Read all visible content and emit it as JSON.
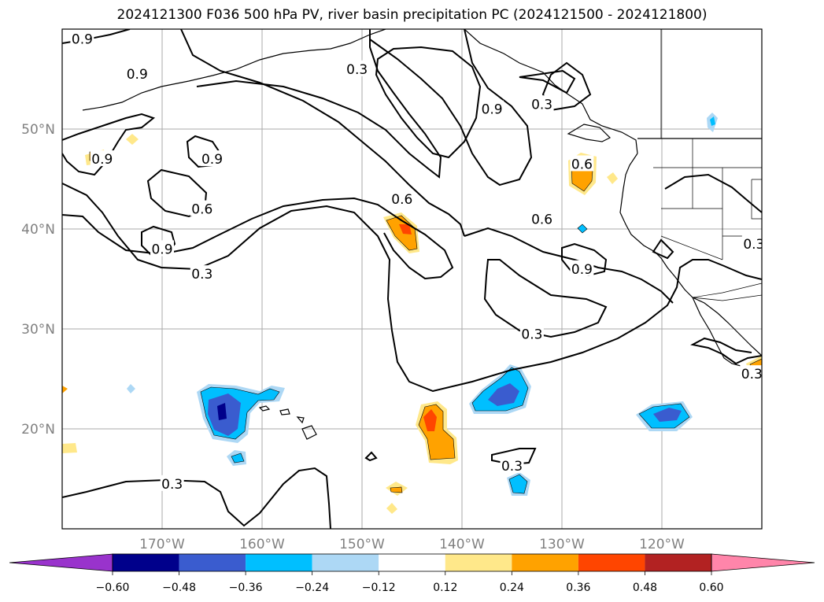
{
  "title": "2024121300 F036 500 hPa PV, river basin precipitation PC (2024121500 - 2024121800)",
  "map": {
    "projection": "PlateCarree",
    "lon_range": [
      -180,
      -110
    ],
    "lat_range": [
      10,
      60
    ],
    "grid": true,
    "lon_ticks": [
      {
        "value": -170,
        "label": "170°W"
      },
      {
        "value": -160,
        "label": "160°W"
      },
      {
        "value": -150,
        "label": "150°W"
      },
      {
        "value": -140,
        "label": "140°W"
      },
      {
        "value": -130,
        "label": "130°W"
      },
      {
        "value": -120,
        "label": "120°W"
      }
    ],
    "lat_ticks": [
      {
        "value": 20,
        "label": "20°N"
      },
      {
        "value": 30,
        "label": "30°N"
      },
      {
        "value": 40,
        "label": "40°N"
      },
      {
        "value": 50,
        "label": "50°N"
      }
    ],
    "pv_contour_levels": [
      0.3,
      0.6,
      0.9
    ],
    "contour_labels": [
      {
        "text": "0.9",
        "lon": -178,
        "lat": 59
      },
      {
        "text": "0.9",
        "lon": -172.5,
        "lat": 55.5
      },
      {
        "text": "0.3",
        "lon": -150.5,
        "lat": 56
      },
      {
        "text": "0.9",
        "lon": -176,
        "lat": 47
      },
      {
        "text": "0.9",
        "lon": -165,
        "lat": 47
      },
      {
        "text": "0.6",
        "lon": -166,
        "lat": 42
      },
      {
        "text": "0.9",
        "lon": -170,
        "lat": 38
      },
      {
        "text": "0.3",
        "lon": -166,
        "lat": 35.5
      },
      {
        "text": "0.9",
        "lon": -137,
        "lat": 52
      },
      {
        "text": "0.6",
        "lon": -146,
        "lat": 43
      },
      {
        "text": "0.6",
        "lon": -132,
        "lat": 41
      },
      {
        "text": "0.3",
        "lon": -132,
        "lat": 52.5
      },
      {
        "text": "0.6",
        "lon": -128,
        "lat": 46.5
      },
      {
        "text": "0.9",
        "lon": -128,
        "lat": 36
      },
      {
        "text": "0.3",
        "lon": -133,
        "lat": 29.5
      },
      {
        "text": "0.3",
        "lon": -110.8,
        "lat": 38.5
      },
      {
        "text": "0.3",
        "lon": -111,
        "lat": 25.5
      },
      {
        "text": "0.3",
        "lon": -135,
        "lat": 16.3
      },
      {
        "text": "0.3",
        "lon": -169,
        "lat": 14.5
      }
    ],
    "precip_blobs": [
      {
        "lon": -142.5,
        "lat": 19.5,
        "sign": "positive"
      },
      {
        "lon": -147,
        "lat": 39.5,
        "sign": "positive"
      },
      {
        "lon": -128,
        "lat": 45.5,
        "sign": "positive"
      },
      {
        "lon": -164,
        "lat": 21.5,
        "sign": "negative"
      },
      {
        "lon": -135,
        "lat": 22.5,
        "sign": "negative"
      },
      {
        "lon": -120,
        "lat": 21,
        "sign": "negative"
      }
    ]
  },
  "colorbar": {
    "colors": [
      "#9933cc",
      "#00008b",
      "#3a5ccf",
      "#00bfff",
      "#add8f5",
      "#ffffff",
      "#ffe88a",
      "#ffa200",
      "#ff4500",
      "#b22222",
      "#ff85aa"
    ],
    "tick_labels": [
      "−0.60",
      "−0.48",
      "−0.36",
      "−0.24",
      "−0.12",
      "0.12",
      "0.24",
      "0.36",
      "0.48",
      "0.60"
    ]
  }
}
